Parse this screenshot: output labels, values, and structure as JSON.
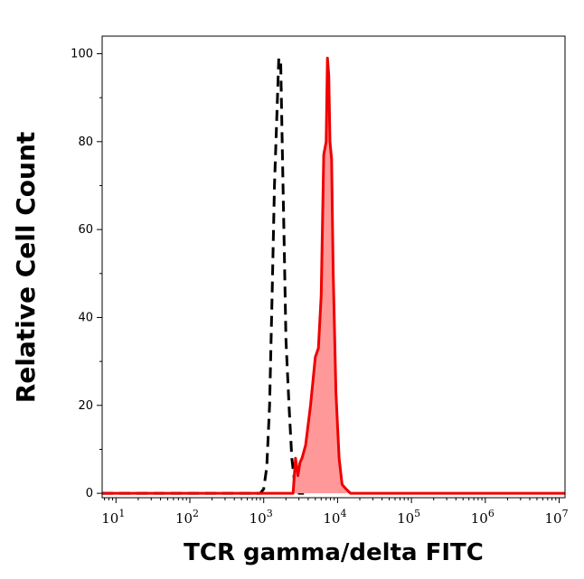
{
  "chart_data": {
    "type": "area",
    "xlabel": "TCR gamma/delta FITC",
    "ylabel": "Relative Cell Count",
    "x_scale": "log",
    "xlim": [
      6.5,
      12000000
    ],
    "ylim": [
      -1,
      104
    ],
    "yticks": [
      0,
      20,
      40,
      60,
      80,
      100
    ],
    "xticks": [
      {
        "value": 10,
        "base": "10",
        "exp": "1"
      },
      {
        "value": 100,
        "base": "10",
        "exp": "2"
      },
      {
        "value": 1000,
        "base": "10",
        "exp": "3"
      },
      {
        "value": 10000,
        "base": "10",
        "exp": "4"
      },
      {
        "value": 100000,
        "base": "10",
        "exp": "5"
      },
      {
        "value": 1000000,
        "base": "10",
        "exp": "6"
      },
      {
        "value": 10000000,
        "base": "10",
        "exp": "7"
      }
    ],
    "grid": false,
    "series": [
      {
        "style": "dashed",
        "color": "#000000",
        "fill": "none",
        "x": [
          6.5,
          100,
          500,
          900,
          1000,
          1100,
          1200,
          1300,
          1400,
          1500,
          1600,
          1700,
          1800,
          1900,
          2000,
          2200,
          2400,
          2600,
          2800,
          3000,
          3500
        ],
        "y": [
          0,
          0,
          0,
          0,
          1,
          6,
          20,
          45,
          70,
          85,
          99,
          98,
          75,
          55,
          35,
          20,
          8,
          3,
          1,
          0,
          0
        ]
      },
      {
        "style": "solid",
        "color": "#ee0000",
        "fill": "#ff9999",
        "x": [
          6.5,
          100,
          1000,
          2500,
          2700,
          2900,
          3100,
          3300,
          3700,
          4300,
          5000,
          5500,
          6000,
          6500,
          7000,
          7300,
          7600,
          7900,
          8300,
          8700,
          9500,
          10500,
          11500,
          13000,
          15000,
          20000,
          100000,
          12000000
        ],
        "y": [
          0,
          0,
          0,
          0,
          8,
          4,
          7,
          8,
          11,
          20,
          31,
          33,
          45,
          77,
          80,
          99,
          95,
          80,
          76,
          51,
          23,
          8,
          2,
          1,
          0,
          0,
          0,
          0
        ]
      }
    ]
  }
}
